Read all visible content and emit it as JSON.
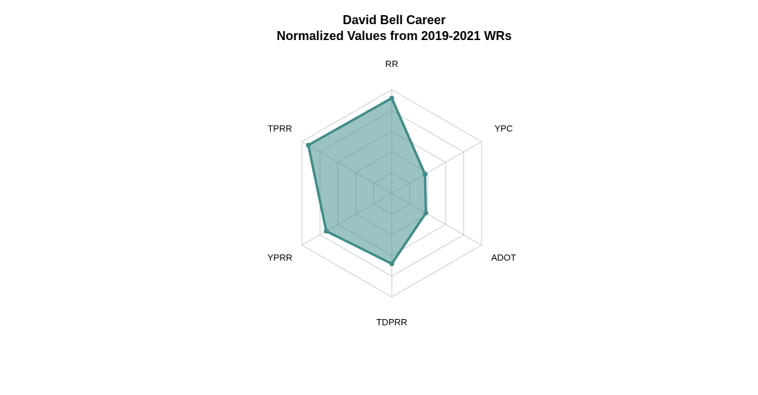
{
  "chart_data": {
    "type": "radar",
    "title": [
      "David Bell Career",
      "Normalized Values from 2019-2021 WRs"
    ],
    "axes": [
      "RR",
      "YPC",
      "ADOT",
      "TDPRR",
      "YPRR",
      "TPRR"
    ],
    "range": [
      0,
      1
    ],
    "grid_levels": 5,
    "series": [
      {
        "values": [
          0.92,
          0.37,
          0.38,
          0.68,
          0.73,
          0.93
        ]
      }
    ],
    "colors": {
      "line": "#3f8c8a",
      "fill": "#3f8c8a",
      "grid": "#c8c8c8"
    }
  }
}
